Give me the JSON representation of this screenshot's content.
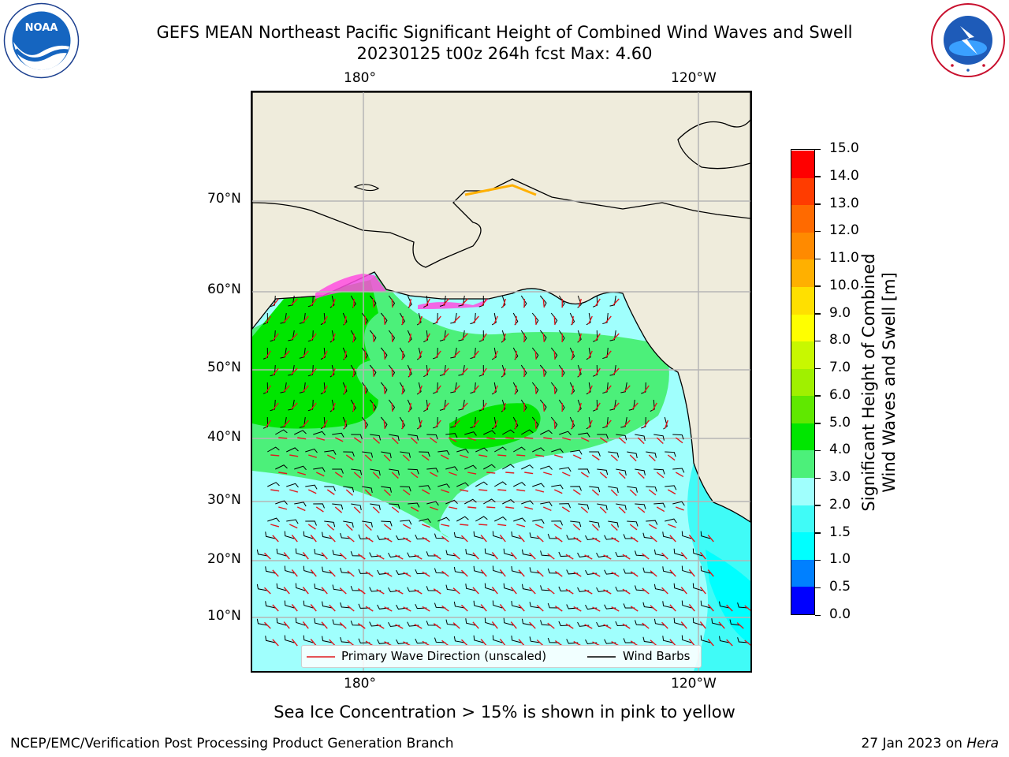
{
  "header": {
    "title_line1": "GEFS MEAN Northeast Pacific Significant Height of Combined Wind Waves and Swell",
    "title_line2": "20230125 t00z 264h fcst   Max: 4.60"
  },
  "logos": {
    "noaa": {
      "text": "NOAA",
      "ring_text": "NATIONAL OCEANIC AND ATMOSPHERIC ADMINISTRATION · U.S. DEPARTMENT OF COMMERCE"
    },
    "nws": {
      "ring_text": "NATIONAL WEATHER SERVICE"
    }
  },
  "axes": {
    "lon_top": [
      "180°",
      "120°W"
    ],
    "lon_bottom": [
      "180°",
      "120°W"
    ],
    "lat_left": [
      "70°N",
      "60°N",
      "50°N",
      "40°N",
      "30°N",
      "20°N",
      "10°N"
    ]
  },
  "legend": {
    "wave_label": "Primary Wave Direction (unscaled)",
    "wind_label": "Wind Barbs"
  },
  "colorbar": {
    "label_line1": "Significant Height of Combined",
    "label_line2": "Wind Waves and Swell [m]",
    "ticks": [
      "15.0",
      "14.0",
      "13.0",
      "12.0",
      "11.0",
      "10.0",
      "9.0",
      "8.0",
      "7.0",
      "6.0",
      "5.0",
      "4.0",
      "3.0",
      "2.0",
      "1.5",
      "1.0",
      "0.5",
      "0.0"
    ],
    "colors": [
      "#0000ff",
      "#0080ff",
      "#00ffff",
      "#40fbf7",
      "#a0fffd",
      "#4cf07a",
      "#00e600",
      "#60e800",
      "#a0f000",
      "#c8f800",
      "#ffff00",
      "#ffe000",
      "#ffb000",
      "#ff8a00",
      "#ff6a00",
      "#ff3c00",
      "#ff0000"
    ]
  },
  "footer": {
    "caption": "Sea Ice Concentration > 15% is shown in pink to yellow",
    "left": "NCEP/EMC/Verification Post Processing Product Generation Branch",
    "date": "27 Jan 2023 on",
    "machine": "Hera"
  }
}
